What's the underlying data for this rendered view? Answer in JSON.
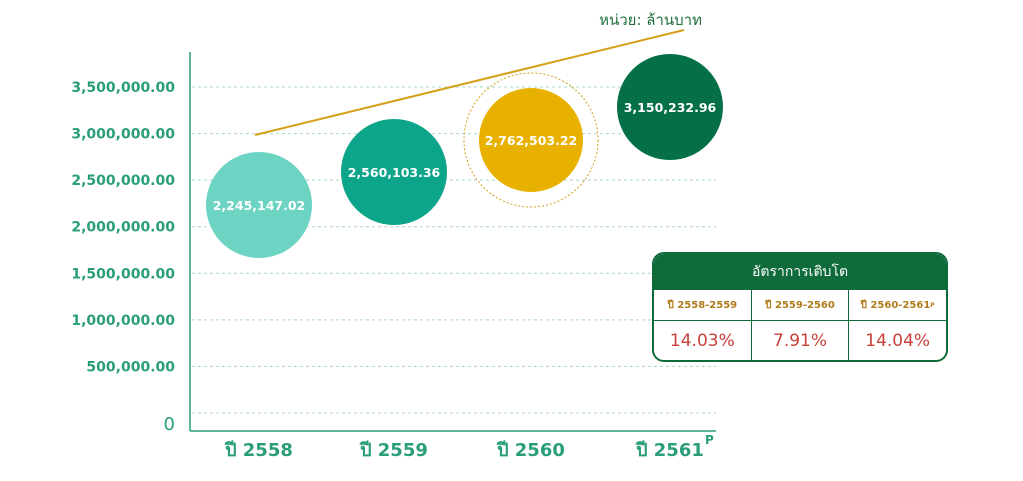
{
  "chart_data": {
    "type": "bubble",
    "unit_label": "หน่วย: ล้านบาท",
    "categories": [
      "ปี 2558",
      "ปี 2559",
      "ปี 2560",
      "ปี 2561"
    ],
    "category_superscripts": [
      "",
      "",
      "",
      "P"
    ],
    "values": [
      2245147.02,
      2560103.36,
      2762503.22,
      3150232.96
    ],
    "value_labels": [
      "2,245,147.02",
      "2,560,103.36",
      "2,762,503.22",
      "3,150,232.96"
    ],
    "bubble_colors": [
      "#6dd3c3",
      "#0ca589",
      "#e8b100",
      "#057048"
    ],
    "highlighted_index": 2,
    "yticks": [
      {
        "value": 0,
        "label": "0"
      },
      {
        "value": 500000,
        "label": "500,000.00"
      },
      {
        "value": 1000000,
        "label": "1,000,000.00"
      },
      {
        "value": 1500000,
        "label": "1,500,000.00"
      },
      {
        "value": 2000000,
        "label": "2,000,000.00"
      },
      {
        "value": 2500000,
        "label": "2,500,000.00"
      },
      {
        "value": 3000000,
        "label": "3,000,000.00"
      },
      {
        "value": 3500000,
        "label": "3,500,000.00"
      }
    ],
    "ylim": [
      0,
      3500000
    ],
    "grid": true,
    "trend_line": true,
    "colors": {
      "axis": "#2a9d7a",
      "grid": "#a9d8c8",
      "trend": "#d4a017"
    }
  },
  "growth_table": {
    "title": "อัตราการเติบโต",
    "rows": [
      {
        "period": "ปี 2558-2559",
        "sup": "",
        "rate": "14.03%"
      },
      {
        "period": "ปี 2559-2560",
        "sup": "",
        "rate": "7.91%"
      },
      {
        "period": "ปี 2560-2561",
        "sup": "P",
        "rate": "14.04%"
      }
    ],
    "colors": {
      "header": "#0f6b3a",
      "period": "#b07b1a",
      "rate": "#c8403a"
    }
  }
}
